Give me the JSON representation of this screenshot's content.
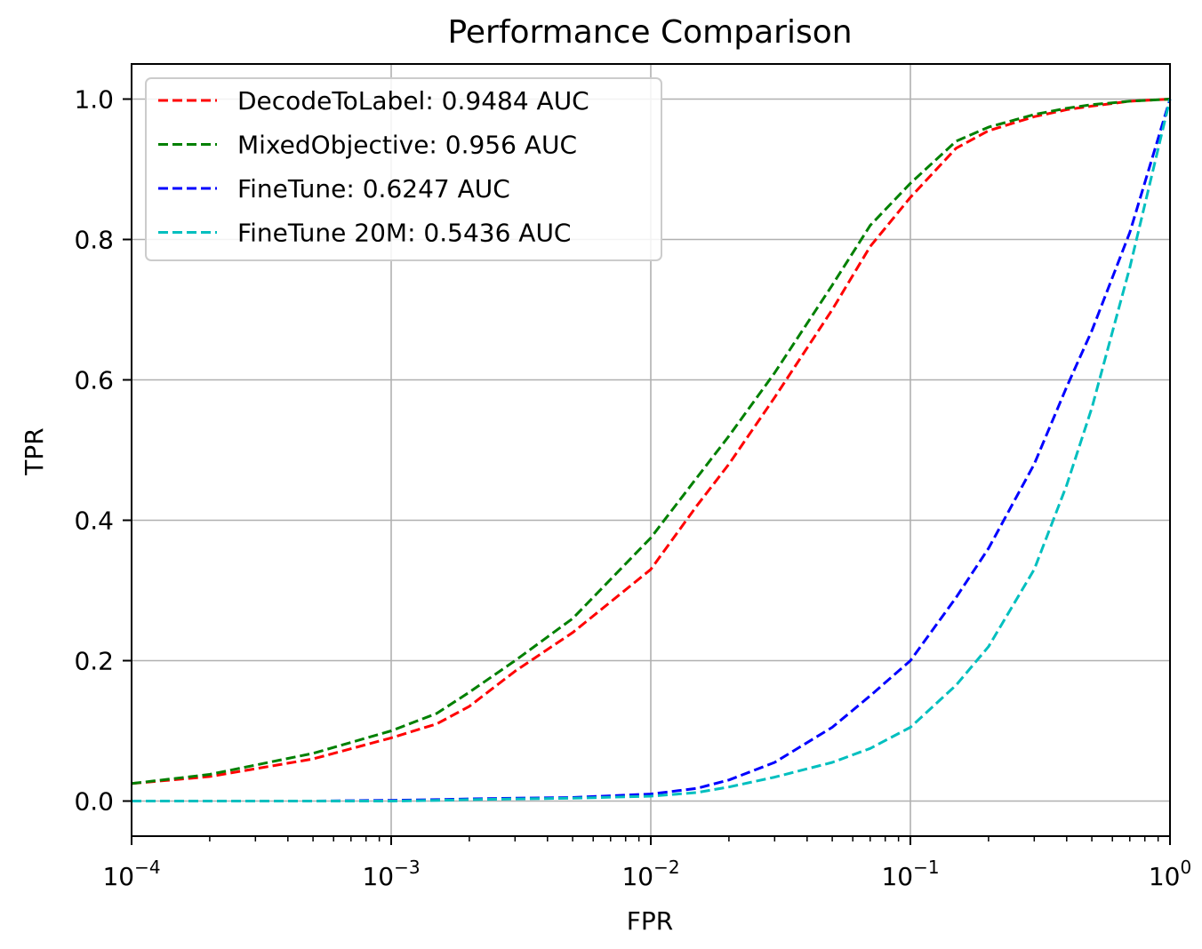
{
  "chart_data": {
    "type": "line",
    "title": "Performance Comparison",
    "xlabel": "FPR",
    "ylabel": "TPR",
    "xscale": "log",
    "xlim": [
      0.0001,
      1
    ],
    "ylim": [
      -0.05,
      1.05
    ],
    "x_ticks": [
      {
        "base": "10",
        "exp": "−4",
        "value": 0.0001
      },
      {
        "base": "10",
        "exp": "−3",
        "value": 0.001
      },
      {
        "base": "10",
        "exp": "−2",
        "value": 0.01
      },
      {
        "base": "10",
        "exp": "−1",
        "value": 0.1
      },
      {
        "base": "10",
        "exp": "0",
        "value": 1
      }
    ],
    "y_ticks": [
      "0.0",
      "0.2",
      "0.4",
      "0.6",
      "0.8",
      "1.0"
    ],
    "grid": true,
    "legend_position": "top-left",
    "x": [
      0.0001,
      0.0002,
      0.0005,
      0.001,
      0.0015,
      0.002,
      0.003,
      0.005,
      0.01,
      0.015,
      0.02,
      0.03,
      0.05,
      0.07,
      0.1,
      0.15,
      0.2,
      0.3,
      0.4,
      0.5,
      0.7,
      1.0
    ],
    "series": [
      {
        "name": "DecodeToLabel: 0.9484 AUC",
        "color": "#ff0000",
        "values": [
          0.025,
          0.035,
          0.06,
          0.09,
          0.11,
          0.135,
          0.185,
          0.24,
          0.33,
          0.42,
          0.48,
          0.575,
          0.7,
          0.79,
          0.86,
          0.93,
          0.955,
          0.975,
          0.985,
          0.99,
          0.997,
          1.0
        ]
      },
      {
        "name": "MixedObjective: 0.956 AUC",
        "color": "#008000",
        "values": [
          0.025,
          0.038,
          0.068,
          0.1,
          0.125,
          0.155,
          0.2,
          0.26,
          0.375,
          0.46,
          0.52,
          0.61,
          0.735,
          0.82,
          0.88,
          0.94,
          0.96,
          0.978,
          0.987,
          0.992,
          0.997,
          1.0
        ]
      },
      {
        "name": "FineTune: 0.6247 AUC",
        "color": "#0000ff",
        "values": [
          0.0,
          0.0,
          0.0,
          0.001,
          0.002,
          0.003,
          0.004,
          0.005,
          0.01,
          0.018,
          0.03,
          0.055,
          0.105,
          0.15,
          0.2,
          0.29,
          0.36,
          0.48,
          0.59,
          0.67,
          0.81,
          1.0
        ]
      },
      {
        "name": "FineTune 20M: 0.5436 AUC",
        "color": "#00bfbf",
        "values": [
          0.0,
          0.0,
          0.0,
          0.0,
          0.001,
          0.002,
          0.003,
          0.004,
          0.007,
          0.012,
          0.02,
          0.034,
          0.055,
          0.075,
          0.105,
          0.165,
          0.22,
          0.33,
          0.45,
          0.56,
          0.76,
          1.0
        ]
      }
    ]
  }
}
